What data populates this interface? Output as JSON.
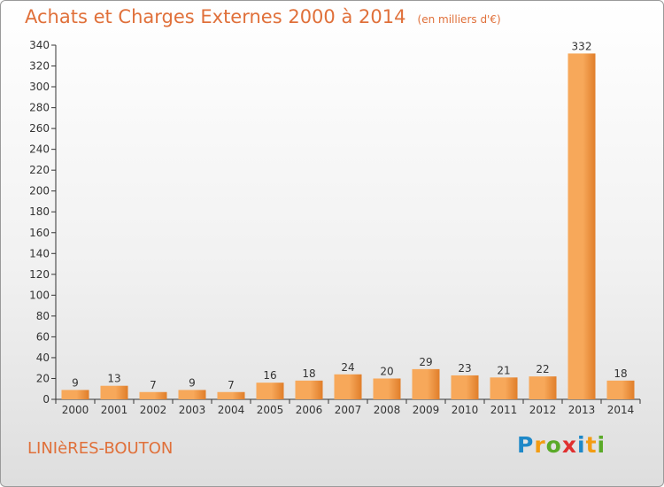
{
  "header": {
    "title": "Achats et Charges Externes 2000 à 2014",
    "unit": "(en milliers d'€)"
  },
  "footer": {
    "city": "LINIèRES-BOUTON",
    "logo": {
      "letters": [
        "P",
        "r",
        "o",
        "x",
        "i",
        "t",
        "i"
      ],
      "colors": [
        "#1e88c8",
        "#f39c12",
        "#5aaa28",
        "#e03030",
        "#1e88c8",
        "#f39c12",
        "#5aaa28"
      ]
    }
  },
  "colors": {
    "title": "#e0703a",
    "bar_light": "#f7a85a",
    "bar_dark": "#e07e2a",
    "axis": "#333333",
    "grid": "#dddddd"
  },
  "chart_data": {
    "type": "bar",
    "title": "Achats et Charges Externes 2000 à 2014",
    "subtitle": "(en milliers d'€)",
    "categories": [
      "2000",
      "2001",
      "2002",
      "2003",
      "2004",
      "2005",
      "2006",
      "2007",
      "2008",
      "2009",
      "2010",
      "2011",
      "2012",
      "2013",
      "2014"
    ],
    "values": [
      9,
      13,
      7,
      9,
      7,
      16,
      18,
      24,
      20,
      29,
      23,
      21,
      22,
      332,
      18
    ],
    "ylim": [
      0,
      340
    ],
    "yticks": [
      0,
      20,
      40,
      60,
      80,
      100,
      120,
      140,
      160,
      180,
      200,
      220,
      240,
      260,
      280,
      300,
      320,
      340
    ],
    "grid": false
  }
}
